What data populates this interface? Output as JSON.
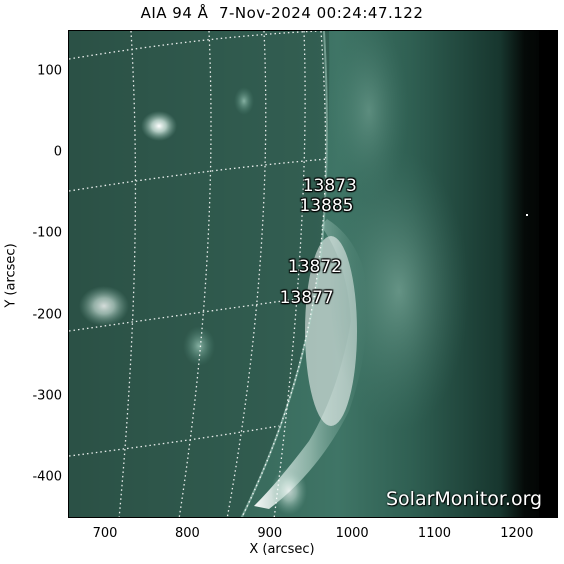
{
  "title": "AIA 94 Å  7-Nov-2024 00:24:47.122",
  "xlabel": "X (arcsec)",
  "ylabel": "Y (arcsec)",
  "x_ticks": [
    {
      "label": "700",
      "value": 700
    },
    {
      "label": "800",
      "value": 800
    },
    {
      "label": "900",
      "value": 900
    },
    {
      "label": "1000",
      "value": 1000
    },
    {
      "label": "1100",
      "value": 1100
    },
    {
      "label": "1200",
      "value": 1200
    }
  ],
  "y_ticks": [
    {
      "label": "100",
      "value": 100
    },
    {
      "label": "0",
      "value": 0
    },
    {
      "label": "-100",
      "value": -100
    },
    {
      "label": "-200",
      "value": -200
    },
    {
      "label": "-300",
      "value": -300
    },
    {
      "label": "-400",
      "value": -400
    }
  ],
  "axis": {
    "xlim": [
      655,
      1250
    ],
    "ylim": [
      -450,
      150
    ]
  },
  "active_regions": [
    {
      "label": "13873",
      "x": 940,
      "y": -42
    },
    {
      "label": "13885",
      "x": 936,
      "y": -67
    },
    {
      "label": "13872",
      "x": 922,
      "y": -142
    },
    {
      "label": "13877",
      "x": 912,
      "y": -180
    }
  ],
  "watermark": "SolarMonitor.org",
  "colors": {
    "disk": "#2f5a4e",
    "corona": "#7fae9f",
    "limb": "#e8f4ef",
    "space": "#000000"
  }
}
